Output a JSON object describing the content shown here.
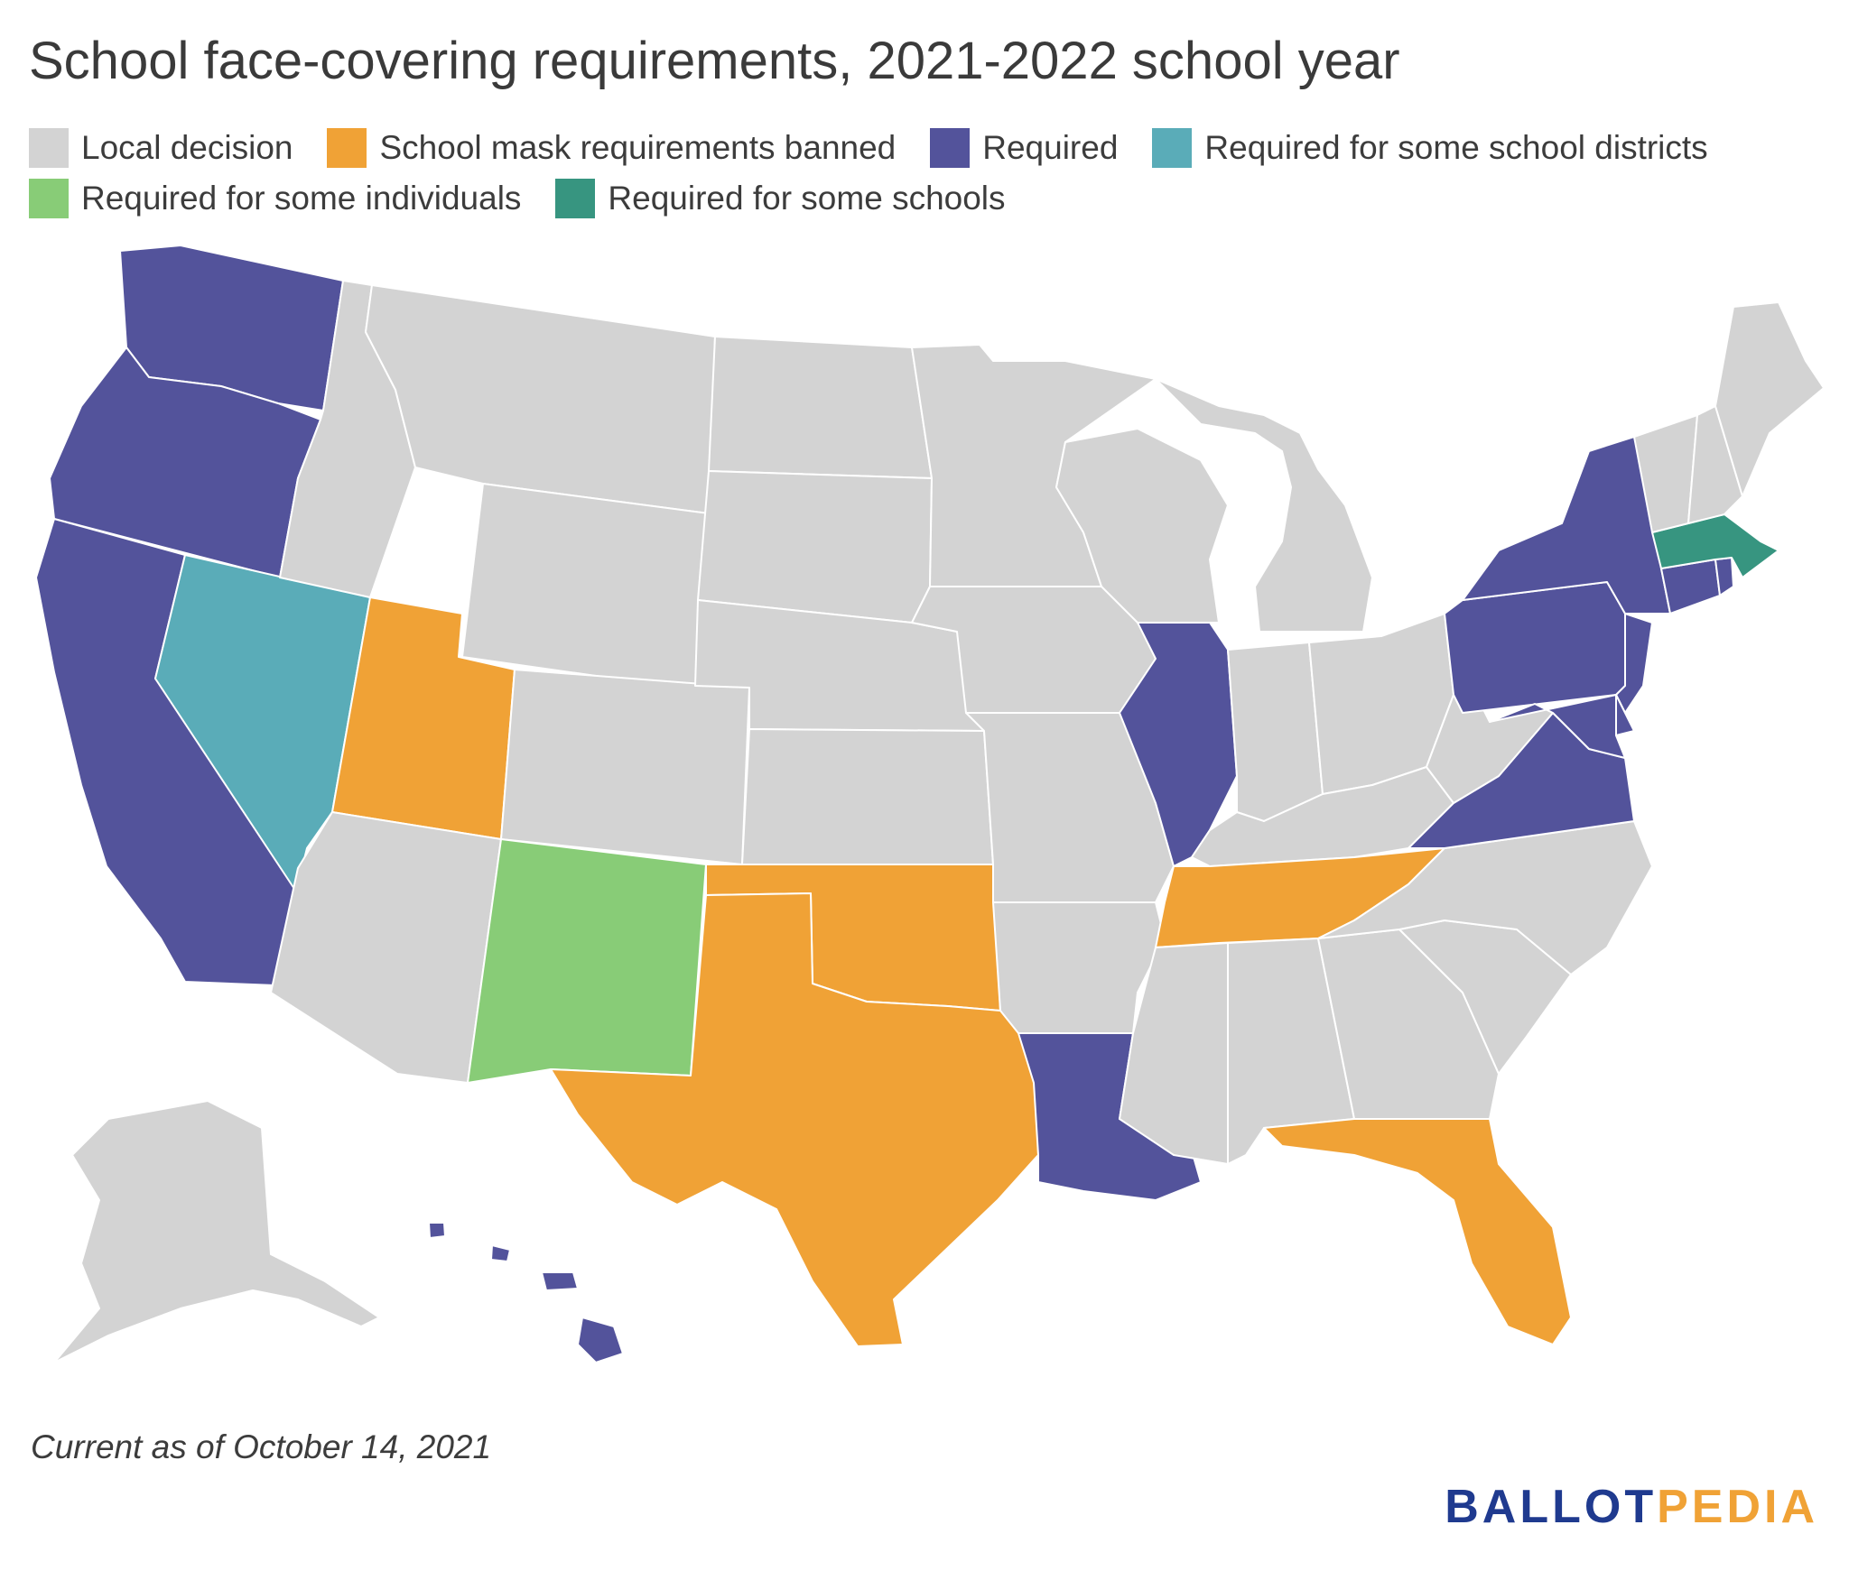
{
  "title": "School face-covering requirements, 2021-2022 school year",
  "legend": [
    {
      "label": "Local decision",
      "color": "#d3d3d3"
    },
    {
      "label": "School mask requirements banned",
      "color": "#f0a236"
    },
    {
      "label": "Required",
      "color": "#53539b"
    },
    {
      "label": "Required for some school districts",
      "color": "#5aacb8"
    },
    {
      "label": "Required for some individuals",
      "color": "#88cc77"
    },
    {
      "label": "Required for some schools",
      "color": "#379580"
    }
  ],
  "map": {
    "states": {
      "WA": "Required",
      "OR": "Required",
      "CA": "Required",
      "NV": "Required for some school districts",
      "ID": "Local decision",
      "MT": "Local decision",
      "WY": "Local decision",
      "UT": "School mask requirements banned",
      "AZ": "Local decision",
      "CO": "Local decision",
      "NM": "Required for some individuals",
      "ND": "Local decision",
      "SD": "Local decision",
      "NE": "Local decision",
      "KS": "Local decision",
      "OK": "School mask requirements banned",
      "TX": "School mask requirements banned",
      "MN": "Local decision",
      "IA": "Local decision",
      "MO": "Local decision",
      "AR": "Local decision",
      "LA": "Required",
      "WI": "Local decision",
      "IL": "Required",
      "MI": "Local decision",
      "IN": "Local decision",
      "OH": "Local decision",
      "KY": "Local decision",
      "TN": "School mask requirements banned",
      "MS": "Local decision",
      "AL": "Local decision",
      "GA": "Local decision",
      "FL": "School mask requirements banned",
      "SC": "Local decision",
      "NC": "Local decision",
      "VA": "Required",
      "WV": "Local decision",
      "PA": "Required",
      "NY": "Required",
      "VT": "Local decision",
      "NH": "Local decision",
      "ME": "Local decision",
      "MA": "Required for some schools",
      "RI": "Required",
      "CT": "Required",
      "NJ": "Required",
      "DE": "Required",
      "MD": "Required",
      "AK": "Local decision",
      "HI": "Required"
    }
  },
  "footer": {
    "note": "Current as of October 14, 2021",
    "logo_part1": "BALLOT",
    "logo_part2": "PEDIA"
  }
}
